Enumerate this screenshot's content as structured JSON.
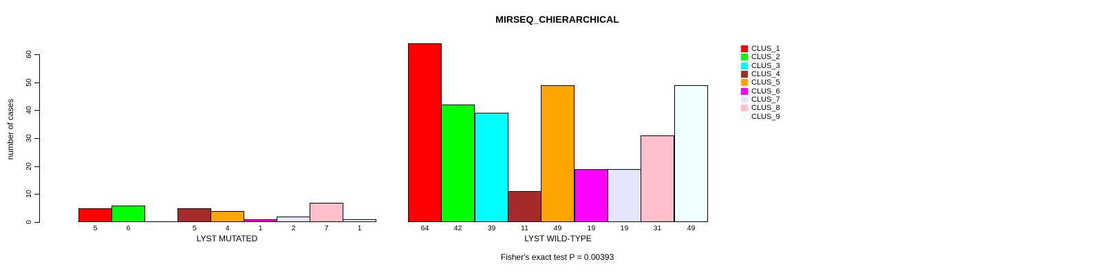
{
  "title": "MIRSEQ_CHIERARCHICAL",
  "chart_data": {
    "type": "bar",
    "title": "MIRSEQ_CHIERARCHICAL",
    "ylabel": "number of cases",
    "ylim": [
      0,
      65
    ],
    "yticks": [
      0,
      10,
      20,
      30,
      40,
      50,
      60
    ],
    "grid": false,
    "legend_position": "right",
    "annotation": "Fisher's exact test P = 0.00393",
    "categories": [
      "CLUS_1",
      "CLUS_2",
      "CLUS_3",
      "CLUS_4",
      "CLUS_5",
      "CLUS_6",
      "CLUS_7",
      "CLUS_8",
      "CLUS_9"
    ],
    "colors": [
      "#FF0000",
      "#00FF00",
      "#00FFFF",
      "#A52A2A",
      "#FFA500",
      "#FF00FF",
      "#E6E6FA",
      "#FFC0CB",
      "#F0FFFF"
    ],
    "groups": [
      {
        "label": "LYST MUTATED",
        "values": [
          5,
          6,
          0,
          5,
          4,
          1,
          2,
          7,
          1
        ],
        "tick_labels": [
          "5",
          "6",
          "",
          "5",
          "4",
          "1",
          "2",
          "7",
          "1"
        ]
      },
      {
        "label": "LYST WILD-TYPE",
        "values": [
          64,
          42,
          39,
          11,
          49,
          19,
          19,
          31,
          49
        ],
        "tick_labels": [
          "64",
          "42",
          "39",
          "11",
          "49",
          "19",
          "19",
          "31",
          "49"
        ]
      }
    ]
  }
}
